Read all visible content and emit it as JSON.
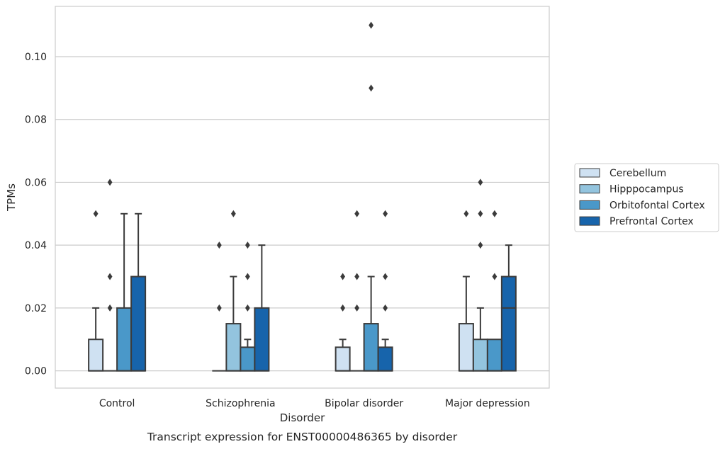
{
  "chart_data": {
    "type": "box",
    "title": "",
    "caption": "Transcript expression for ENST00000486365 by disorder",
    "xlabel": "Disorder",
    "ylabel": "TPMs",
    "ylim": [
      -0.0055,
      0.116
    ],
    "yticks": [
      0.0,
      0.02,
      0.04,
      0.06,
      0.08,
      0.1
    ],
    "ytick_labels": [
      "0.00",
      "0.02",
      "0.04",
      "0.06",
      "0.08",
      "0.10"
    ],
    "grid": true,
    "legend_position": "right",
    "categories": [
      "Control",
      "Schizophrenia",
      "Bipolar disorder",
      "Major depression"
    ],
    "series": [
      {
        "name": "Cerebellum",
        "color": "#cfe1f2",
        "boxes": [
          {
            "q1": 0.0,
            "median": 0.0,
            "q3": 0.01,
            "whisker_low": 0.0,
            "whisker_high": 0.02,
            "outliers": [
              0.05
            ]
          },
          {
            "q1": 0.0,
            "median": 0.0,
            "q3": 0.0,
            "whisker_low": 0.0,
            "whisker_high": 0.0,
            "outliers": [
              0.02,
              0.04
            ]
          },
          {
            "q1": 0.0,
            "median": 0.0,
            "q3": 0.0075,
            "whisker_low": 0.0,
            "whisker_high": 0.01,
            "outliers": [
              0.02,
              0.03
            ]
          },
          {
            "q1": 0.0,
            "median": 0.0,
            "q3": 0.015,
            "whisker_low": 0.0,
            "whisker_high": 0.03,
            "outliers": [
              0.05
            ]
          }
        ]
      },
      {
        "name": "Hipppocampus",
        "color": "#93c4de",
        "boxes": [
          {
            "q1": 0.0,
            "median": 0.0,
            "q3": 0.0,
            "whisker_low": 0.0,
            "whisker_high": 0.0,
            "outliers": [
              0.02,
              0.03,
              0.06
            ]
          },
          {
            "q1": 0.0,
            "median": 0.0,
            "q3": 0.015,
            "whisker_low": 0.0,
            "whisker_high": 0.03,
            "outliers": [
              0.05
            ]
          },
          {
            "q1": 0.0,
            "median": 0.0,
            "q3": 0.0,
            "whisker_low": 0.0,
            "whisker_high": 0.0,
            "outliers": [
              0.02,
              0.03,
              0.05
            ]
          },
          {
            "q1": 0.0,
            "median": 0.0,
            "q3": 0.01,
            "whisker_low": 0.0,
            "whisker_high": 0.02,
            "outliers": [
              0.04,
              0.05,
              0.06
            ]
          }
        ]
      },
      {
        "name": "Orbitofontal Cortex",
        "color": "#4a98c9",
        "boxes": [
          {
            "q1": 0.0,
            "median": 0.0,
            "q3": 0.02,
            "whisker_low": 0.0,
            "whisker_high": 0.05,
            "outliers": []
          },
          {
            "q1": 0.0,
            "median": 0.0,
            "q3": 0.0075,
            "whisker_low": 0.0,
            "whisker_high": 0.01,
            "outliers": [
              0.02,
              0.03,
              0.04
            ]
          },
          {
            "q1": 0.0,
            "median": 0.0,
            "q3": 0.015,
            "whisker_low": 0.0,
            "whisker_high": 0.03,
            "outliers": [
              0.09,
              0.11
            ]
          },
          {
            "q1": 0.0,
            "median": 0.0,
            "q3": 0.01,
            "whisker_low": 0.0,
            "whisker_high": 0.01,
            "outliers": [
              0.03,
              0.05
            ]
          }
        ]
      },
      {
        "name": "Prefrontal Cortex",
        "color": "#1764ab",
        "boxes": [
          {
            "q1": 0.0,
            "median": 0.0,
            "q3": 0.03,
            "whisker_low": 0.0,
            "whisker_high": 0.05,
            "outliers": []
          },
          {
            "q1": 0.0,
            "median": 0.0,
            "q3": 0.02,
            "whisker_low": 0.0,
            "whisker_high": 0.04,
            "outliers": []
          },
          {
            "q1": 0.0,
            "median": 0.0,
            "q3": 0.0075,
            "whisker_low": 0.0,
            "whisker_high": 0.01,
            "outliers": [
              0.02,
              0.03,
              0.05
            ]
          },
          {
            "q1": 0.0,
            "median": 0.02,
            "q3": 0.03,
            "whisker_low": 0.0,
            "whisker_high": 0.04,
            "outliers": []
          }
        ]
      }
    ]
  }
}
